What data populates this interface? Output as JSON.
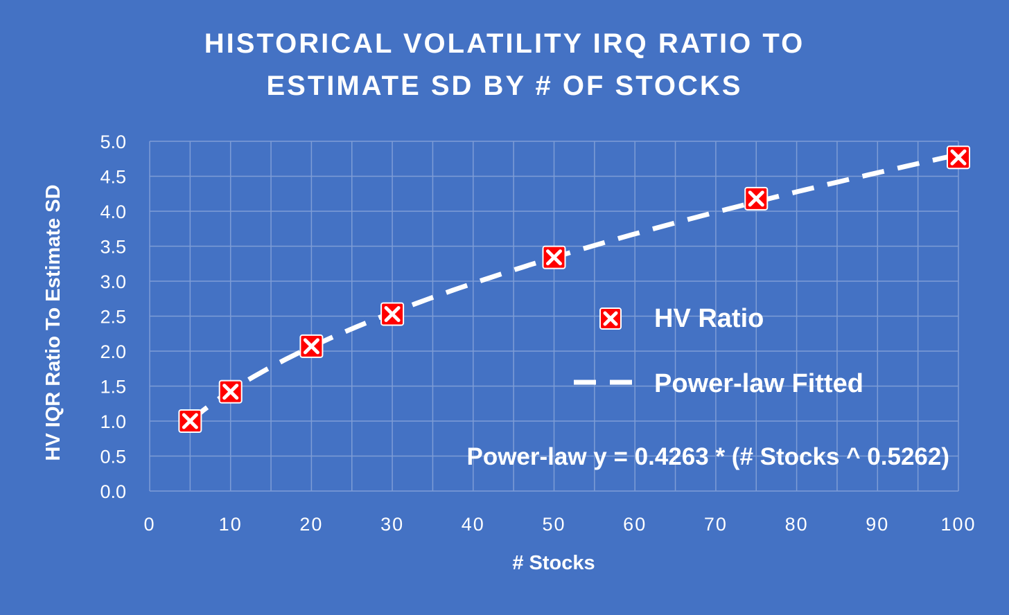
{
  "chart_data": {
    "type": "scatter",
    "title_lines": [
      "HISTORICAL VOLATILITY IRQ RATIO TO",
      "ESTIMATE SD BY # OF STOCKS"
    ],
    "xlabel": "# Stocks",
    "ylabel": "HV IQR Ratio To Estimate SD",
    "xlim": [
      0,
      100
    ],
    "ylim": [
      0,
      5
    ],
    "x_ticks": [
      "0",
      "10",
      "20",
      "30",
      "40",
      "50",
      "60",
      "70",
      "80",
      "90",
      "100"
    ],
    "y_ticks": [
      "0.0",
      "0.5",
      "1.0",
      "1.5",
      "2.0",
      "2.5",
      "3.0",
      "3.5",
      "4.0",
      "4.5",
      "5.0"
    ],
    "grid": true,
    "legend_position": "right",
    "series": [
      {
        "name": "HV Ratio",
        "kind": "scatter",
        "marker": "x-square",
        "color": "#FF0000",
        "x": [
          5,
          10,
          20,
          30,
          50,
          75,
          100
        ],
        "y": [
          1.0,
          1.42,
          2.07,
          2.53,
          3.34,
          4.18,
          4.77
        ]
      },
      {
        "name": "Power-law Fitted",
        "kind": "line",
        "style": "dashed",
        "color": "#FFFFFF",
        "function": {
          "a": 0.4263,
          "b": 0.5262
        },
        "x_range": [
          5,
          100
        ]
      }
    ],
    "annotation": "Power-law y = 0.4263 * (# Stocks ^ 0.5262)"
  },
  "colors": {
    "background": "#4472C4",
    "gridline": "#7E9DD6",
    "marker_fill": "#FF0000",
    "marker_x": "#FFFFFF",
    "text": "#FFFFFF"
  }
}
